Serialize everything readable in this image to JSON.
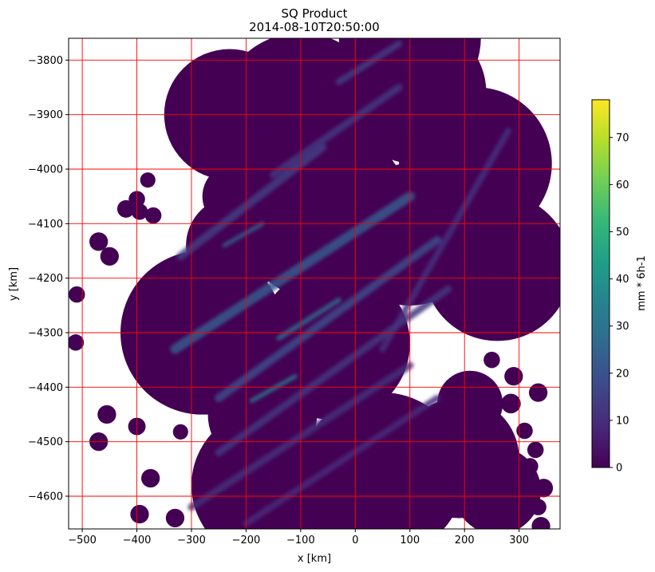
{
  "chart_data": {
    "type": "heatmap",
    "title": "SQ Product",
    "subtitle": "2014-08-10T20:50:00",
    "xlabel": "x [km]",
    "ylabel": "y [km]",
    "xlim": [
      -525,
      375
    ],
    "ylim": [
      -4660,
      -3760
    ],
    "x_ticks": [
      -500,
      -400,
      -300,
      -200,
      -100,
      0,
      100,
      200,
      300
    ],
    "x_tick_labels": [
      "−500",
      "−400",
      "−300",
      "−200",
      "−100",
      "0",
      "100",
      "200",
      "300"
    ],
    "y_ticks": [
      -3800,
      -3900,
      -4000,
      -4100,
      -4200,
      -4300,
      -4400,
      -4500,
      -4600
    ],
    "y_tick_labels": [
      "−3800",
      "−3900",
      "−4000",
      "−4100",
      "−4200",
      "−4300",
      "−4400",
      "−4500",
      "−4600"
    ],
    "grid": true,
    "grid_color": "#ff0000",
    "colormap": "viridis",
    "colorbar": {
      "label": "mm * 6h-1",
      "range": [
        0,
        78
      ],
      "ticks": [
        0,
        10,
        20,
        30,
        40,
        50,
        60,
        70
      ],
      "tick_labels": [
        "0",
        "10",
        "20",
        "30",
        "40",
        "50",
        "60",
        "70"
      ],
      "colors": [
        "#440154",
        "#482878",
        "#3e4989",
        "#31688e",
        "#26828e",
        "#1f9e89",
        "#35b779",
        "#6ece58",
        "#b5de2b",
        "#fde725"
      ]
    },
    "background_value": 0,
    "coverage_disks": [
      {
        "x": -100,
        "y": -3900,
        "r": 150
      },
      {
        "x": -230,
        "y": -3900,
        "r": 120
      },
      {
        "x": 110,
        "y": -3860,
        "r": 130
      },
      {
        "x": 220,
        "y": -3990,
        "r": 140
      },
      {
        "x": 260,
        "y": -4180,
        "r": 135
      },
      {
        "x": 100,
        "y": -4120,
        "r": 130
      },
      {
        "x": -60,
        "y": -4080,
        "r": 160
      },
      {
        "x": -220,
        "y": -4140,
        "r": 90
      },
      {
        "x": -280,
        "y": -4300,
        "r": 150
      },
      {
        "x": -40,
        "y": -4320,
        "r": 140
      },
      {
        "x": -170,
        "y": -4450,
        "r": 100
      },
      {
        "x": -160,
        "y": -4580,
        "r": 140
      },
      {
        "x": 50,
        "y": -4560,
        "r": 150
      },
      {
        "x": 190,
        "y": -4530,
        "r": 110
      },
      {
        "x": 210,
        "y": -4430,
        "r": 60
      },
      {
        "x": 260,
        "y": -4590,
        "r": 80
      },
      {
        "x": 100,
        "y": -3760,
        "r": 130
      },
      {
        "x": -195,
        "y": -3970,
        "r": 15
      },
      {
        "x": -380,
        "y": -4020,
        "r": 14
      },
      {
        "x": -400,
        "y": -4055,
        "r": 15
      },
      {
        "x": -370,
        "y": -4085,
        "r": 15
      },
      {
        "x": -420,
        "y": -4073,
        "r": 16
      },
      {
        "x": -395,
        "y": -4078,
        "r": 15
      },
      {
        "x": -470,
        "y": -4133,
        "r": 17
      },
      {
        "x": -450,
        "y": -4160,
        "r": 17
      },
      {
        "x": -510,
        "y": -4230,
        "r": 15
      },
      {
        "x": -512,
        "y": -4318,
        "r": 15
      },
      {
        "x": -400,
        "y": -4333,
        "r": 12
      },
      {
        "x": -455,
        "y": -4450,
        "r": 17
      },
      {
        "x": -400,
        "y": -4472,
        "r": 16
      },
      {
        "x": -470,
        "y": -4500,
        "r": 17
      },
      {
        "x": -375,
        "y": -4567,
        "r": 17
      },
      {
        "x": -395,
        "y": -4633,
        "r": 17
      },
      {
        "x": -330,
        "y": -4640,
        "r": 17
      },
      {
        "x": -320,
        "y": -4482,
        "r": 14
      },
      {
        "x": 250,
        "y": -4350,
        "r": 15
      },
      {
        "x": 290,
        "y": -4380,
        "r": 17
      },
      {
        "x": 335,
        "y": -4410,
        "r": 17
      },
      {
        "x": 285,
        "y": -4430,
        "r": 18
      },
      {
        "x": 310,
        "y": -4480,
        "r": 15
      },
      {
        "x": 330,
        "y": -4515,
        "r": 15
      },
      {
        "x": 320,
        "y": -4545,
        "r": 15
      },
      {
        "x": 305,
        "y": -4575,
        "r": 15
      },
      {
        "x": 345,
        "y": -4585,
        "r": 17
      },
      {
        "x": 335,
        "y": -4620,
        "r": 15
      },
      {
        "x": 340,
        "y": -4655,
        "r": 17
      },
      {
        "x": 290,
        "y": -4650,
        "r": 14
      },
      {
        "x": -220,
        "y": -4050,
        "r": 60
      }
    ],
    "rain_bands": [
      {
        "x1": -330,
        "y1": -4330,
        "x2": 100,
        "y2": -4050,
        "value": 22,
        "width": 12
      },
      {
        "x1": -250,
        "y1": -4420,
        "x2": 150,
        "y2": -4130,
        "value": 18,
        "width": 10
      },
      {
        "x1": -320,
        "y1": -4160,
        "x2": -60,
        "y2": -3960,
        "value": 14,
        "width": 10
      },
      {
        "x1": -150,
        "y1": -4010,
        "x2": 80,
        "y2": -3850,
        "value": 12,
        "width": 9
      },
      {
        "x1": -250,
        "y1": -4520,
        "x2": 170,
        "y2": -4220,
        "value": 12,
        "width": 9
      },
      {
        "x1": -300,
        "y1": -4620,
        "x2": 100,
        "y2": -4360,
        "value": 10,
        "width": 9
      },
      {
        "x1": -200,
        "y1": -4650,
        "x2": 150,
        "y2": -4420,
        "value": 9,
        "width": 8
      },
      {
        "x1": 50,
        "y1": -4330,
        "x2": 280,
        "y2": -3930,
        "value": 11,
        "width": 8
      },
      {
        "x1": -30,
        "y1": -3840,
        "x2": 80,
        "y2": -3770,
        "value": 14,
        "width": 8
      },
      {
        "x1": -140,
        "y1": -4310,
        "x2": -30,
        "y2": -4240,
        "value": 28,
        "width": 6
      },
      {
        "x1": -190,
        "y1": -4425,
        "x2": -110,
        "y2": -4380,
        "value": 32,
        "width": 5
      },
      {
        "x1": -240,
        "y1": -4140,
        "x2": -170,
        "y2": -4100,
        "value": 24,
        "width": 5
      }
    ]
  }
}
